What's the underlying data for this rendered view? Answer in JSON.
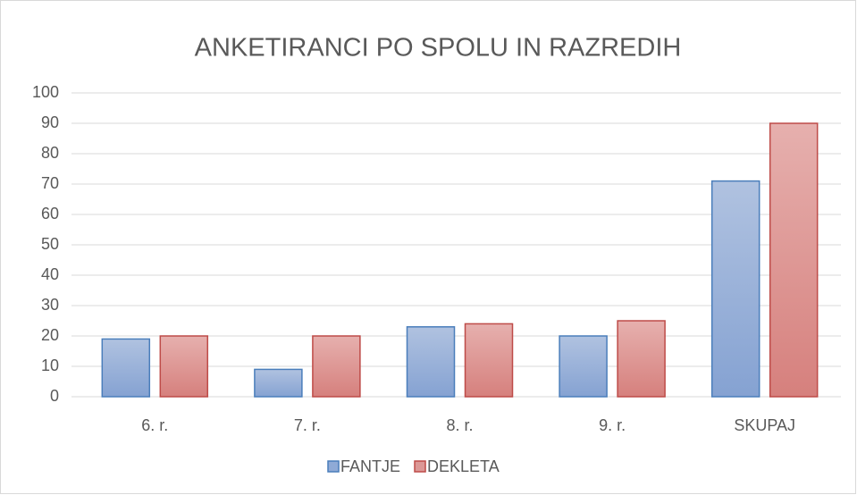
{
  "chart_data": {
    "type": "bar",
    "title": "ANKETIRANCI PO SPOLU IN RAZREDIH",
    "categories": [
      "6. r.",
      "7. r.",
      "8. r.",
      "9. r.",
      "SKUPAJ"
    ],
    "series": [
      {
        "name": "FANTJE",
        "color": "#8faad6",
        "values": [
          19,
          9,
          23,
          20,
          71
        ]
      },
      {
        "name": "DEKLETA",
        "color": "#dc9896",
        "values": [
          20,
          20,
          24,
          25,
          90
        ]
      }
    ],
    "ylim": [
      0,
      100
    ],
    "yticks": [
      0,
      10,
      20,
      30,
      40,
      50,
      60,
      70,
      80,
      90,
      100
    ],
    "grid": true,
    "legend": "bottom"
  }
}
